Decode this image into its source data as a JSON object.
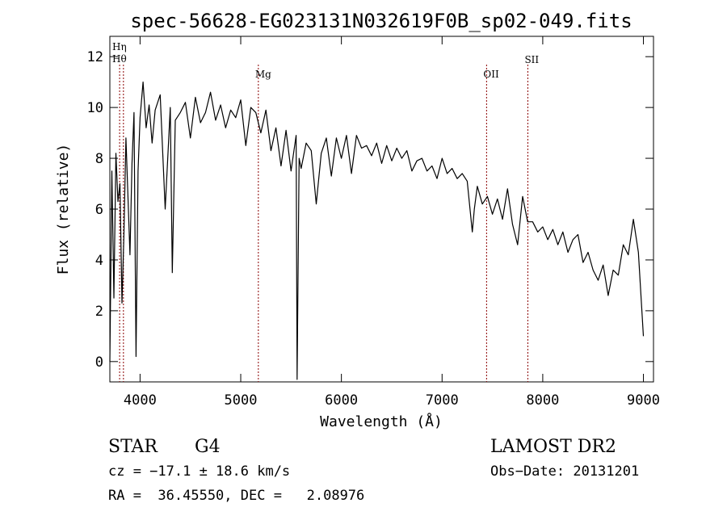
{
  "chart_data": {
    "type": "line",
    "title": "spec-56628-EG023131N032619F0B_sp02-049.fits",
    "xlabel": "Wavelength (Å)",
    "ylabel": "Flux (relative)",
    "xlim": [
      3700,
      9100
    ],
    "ylim": [
      -0.8,
      12.8
    ],
    "x_ticks": [
      4000,
      5000,
      6000,
      7000,
      8000,
      9000
    ],
    "y_ticks": [
      0,
      2,
      4,
      6,
      8,
      10,
      12
    ],
    "grid": false,
    "line_color": "#000000",
    "line_marker_color": "#8b0000",
    "series": [
      {
        "x": [
          3700,
          3720,
          3740,
          3760,
          3780,
          3800,
          3820,
          3840,
          3860,
          3880,
          3900,
          3920,
          3940,
          3960,
          3980,
          4000,
          4030,
          4060,
          4090,
          4120,
          4150,
          4200,
          4250,
          4300,
          4320,
          4350,
          4400,
          4450,
          4500,
          4550,
          4600,
          4650,
          4700,
          4750,
          4800,
          4850,
          4900,
          4950,
          5000,
          5050,
          5100,
          5150,
          5200,
          5250,
          5300,
          5350,
          5400,
          5450,
          5500,
          5550,
          5560,
          5580,
          5600,
          5650,
          5700,
          5750,
          5800,
          5850,
          5900,
          5950,
          6000,
          6050,
          6100,
          6150,
          6200,
          6250,
          6300,
          6350,
          6400,
          6450,
          6500,
          6550,
          6600,
          6650,
          6700,
          6750,
          6800,
          6850,
          6900,
          6950,
          7000,
          7050,
          7100,
          7150,
          7200,
          7250,
          7300,
          7320,
          7350,
          7400,
          7450,
          7500,
          7550,
          7600,
          7650,
          7700,
          7750,
          7800,
          7850,
          7900,
          7950,
          8000,
          8050,
          8100,
          8150,
          8200,
          8250,
          8300,
          8350,
          8400,
          8450,
          8500,
          8550,
          8600,
          8650,
          8700,
          8750,
          8800,
          8850,
          8900,
          8950,
          9000
        ],
        "y": [
          0.0,
          7.5,
          2.5,
          8.2,
          6.3,
          7.0,
          2.3,
          5.0,
          8.8,
          6.5,
          4.2,
          7.8,
          9.8,
          0.2,
          7.5,
          9.6,
          11.0,
          9.2,
          10.1,
          8.6,
          9.9,
          10.5,
          6.0,
          10.0,
          3.5,
          9.5,
          9.8,
          10.2,
          8.8,
          10.4,
          9.4,
          9.8,
          10.6,
          9.5,
          10.1,
          9.2,
          9.9,
          9.6,
          10.3,
          8.5,
          10.0,
          9.8,
          9.0,
          9.9,
          8.3,
          9.2,
          7.7,
          9.1,
          7.5,
          8.9,
          -0.7,
          8.0,
          7.6,
          8.6,
          8.3,
          6.2,
          8.2,
          8.8,
          7.3,
          8.8,
          8.0,
          8.9,
          7.4,
          8.9,
          8.4,
          8.5,
          8.1,
          8.6,
          7.8,
          8.5,
          7.9,
          8.4,
          8.0,
          8.3,
          7.5,
          7.9,
          8.0,
          7.5,
          7.7,
          7.2,
          8.0,
          7.4,
          7.6,
          7.2,
          7.4,
          7.1,
          5.1,
          6.0,
          6.9,
          6.2,
          6.5,
          5.8,
          6.4,
          5.6,
          6.8,
          5.4,
          4.6,
          6.5,
          5.5,
          5.5,
          5.1,
          5.3,
          4.8,
          5.2,
          4.6,
          5.1,
          4.3,
          4.8,
          5.0,
          3.9,
          4.3,
          3.6,
          3.2,
          3.8,
          2.6,
          3.6,
          3.4,
          4.6,
          4.2,
          5.6,
          4.3,
          1.0
        ]
      }
    ],
    "lines": [
      {
        "label": "Hη",
        "x": 3835
      },
      {
        "label": "Hθ",
        "x": 3797
      },
      {
        "label": "Mg",
        "x": 5175
      },
      {
        "label": "OII",
        "x": 7442
      },
      {
        "label": "SII",
        "x": 7852
      }
    ],
    "info": {
      "object_type": "STAR",
      "subclass": "G4",
      "survey": "LAMOST DR2",
      "cz": "cz = −17.1 ± 18.6 km/s",
      "obs_date": "Obs−Date: 20131201",
      "coords": "RA =  36.45550, DEC =   2.08976"
    }
  }
}
